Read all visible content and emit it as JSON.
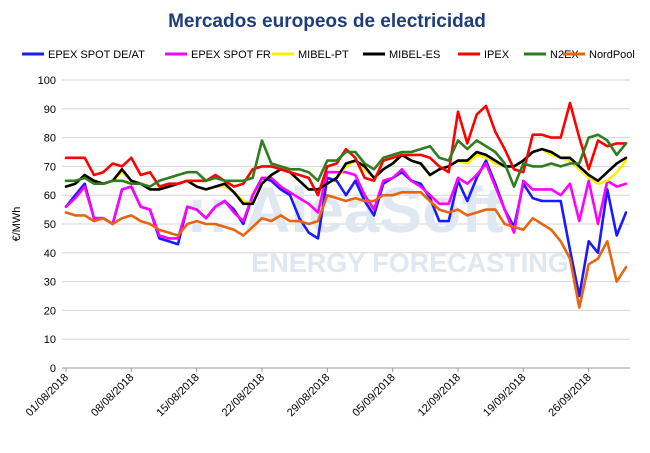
{
  "chart_data": {
    "type": "line",
    "title": "Mercados europeos de electricidad",
    "xlabel": "",
    "ylabel": "€/MWh",
    "ylim": [
      0,
      100
    ],
    "yticks": [
      0,
      10,
      20,
      30,
      40,
      50,
      60,
      70,
      80,
      90,
      100
    ],
    "grid": true,
    "legend_position": "top",
    "xtick_labels": [
      "01/08/2018",
      "08/08/2018",
      "15/08/2018",
      "22/08/2018",
      "29/08/2018",
      "05/09/2018",
      "12/09/2018",
      "19/09/2018",
      "26/09/2018"
    ],
    "x_start": "01/08/2018",
    "x_end": "30/09/2018",
    "series": [
      {
        "name": "EPEX SPOT DE/AT",
        "color": "#1a1aff",
        "values": [
          56,
          60,
          64,
          52,
          52,
          50,
          62,
          63,
          56,
          55,
          45,
          44,
          43,
          56,
          55,
          52,
          56,
          58,
          55,
          50,
          60,
          66,
          65,
          62,
          60,
          52,
          47,
          45,
          66,
          65,
          60,
          65,
          58,
          53,
          64,
          66,
          68,
          65,
          64,
          59,
          51,
          51,
          65,
          58,
          66,
          72,
          64,
          55,
          49,
          64,
          59,
          58,
          58,
          58,
          41,
          25,
          44,
          40,
          62,
          46,
          54
        ]
      },
      {
        "name": "EPEX SPOT FR",
        "color": "#ff00ff",
        "values": [
          56,
          59,
          63,
          52,
          52,
          50,
          62,
          63,
          56,
          55,
          46,
          45,
          45,
          56,
          55,
          52,
          56,
          58,
          54,
          51,
          60,
          66,
          66,
          63,
          61,
          59,
          57,
          54,
          68,
          68,
          68,
          67,
          60,
          55,
          65,
          66,
          69,
          65,
          63,
          60,
          57,
          57,
          66,
          64,
          67,
          71,
          63,
          55,
          47,
          65,
          62,
          62,
          62,
          60,
          64,
          51,
          65,
          50,
          65,
          63,
          64
        ]
      },
      {
        "name": "MIBEL-PT",
        "color": "#ffee00",
        "values": [
          63,
          64,
          67,
          65,
          64,
          65,
          68,
          65,
          64,
          62,
          62,
          63,
          64,
          65,
          63,
          62,
          63,
          63,
          61,
          58,
          57,
          64,
          67,
          69,
          68,
          65,
          62,
          62,
          64,
          66,
          70,
          72,
          69,
          66,
          69,
          71,
          74,
          72,
          71,
          67,
          69,
          70,
          72,
          71,
          74,
          73,
          71,
          70,
          70,
          72,
          75,
          76,
          74,
          73,
          72,
          69,
          66,
          64,
          65,
          68,
          72
        ]
      },
      {
        "name": "MIBEL-ES",
        "color": "#000000",
        "values": [
          63,
          64,
          67,
          65,
          64,
          65,
          69,
          65,
          64,
          62,
          62,
          63,
          64,
          65,
          63,
          62,
          63,
          64,
          61,
          57,
          57,
          64,
          67,
          69,
          68,
          65,
          62,
          62,
          64,
          66,
          71,
          72,
          70,
          66,
          69,
          71,
          74,
          72,
          71,
          67,
          69,
          70,
          72,
          72,
          75,
          74,
          72,
          70,
          70,
          72,
          75,
          76,
          75,
          73,
          73,
          70,
          67,
          65,
          68,
          71,
          73
        ]
      },
      {
        "name": "IPEX",
        "color": "#ff0000",
        "values": [
          73,
          73,
          73,
          67,
          68,
          71,
          70,
          73,
          67,
          68,
          63,
          64,
          64,
          65,
          65,
          65,
          67,
          65,
          63,
          64,
          69,
          70,
          70,
          69,
          68,
          67,
          66,
          60,
          70,
          71,
          76,
          73,
          66,
          65,
          72,
          73,
          74,
          74,
          74,
          73,
          70,
          68,
          89,
          78,
          88,
          91,
          82,
          76,
          69,
          68,
          81,
          81,
          80,
          80,
          92,
          80,
          69,
          79,
          77,
          78,
          78
        ]
      },
      {
        "name": "N2EX",
        "color": "#2e7d1e",
        "values": [
          65,
          65,
          66,
          64,
          64,
          65,
          65,
          64,
          64,
          63,
          65,
          66,
          67,
          68,
          68,
          65,
          66,
          65,
          65,
          65,
          66,
          79,
          71,
          70,
          69,
          69,
          68,
          65,
          72,
          72,
          75,
          75,
          71,
          69,
          73,
          74,
          75,
          75,
          76,
          77,
          73,
          72,
          79,
          76,
          79,
          77,
          75,
          71,
          63,
          71,
          70,
          70,
          71,
          70,
          71,
          71,
          80,
          81,
          79,
          74,
          78
        ]
      },
      {
        "name": "NordPool",
        "color": "#e8650e",
        "values": [
          54,
          53,
          53,
          51,
          52,
          50,
          52,
          53,
          51,
          50,
          48,
          47,
          46,
          50,
          51,
          50,
          50,
          49,
          48,
          46,
          49,
          52,
          51,
          53,
          51,
          51,
          50,
          51,
          60,
          59,
          58,
          59,
          58,
          58,
          60,
          60,
          61,
          61,
          61,
          58,
          55,
          54,
          55,
          53,
          54,
          55,
          55,
          50,
          49,
          48,
          52,
          50,
          48,
          44,
          38,
          21,
          36,
          38,
          44,
          30,
          35
        ]
      }
    ]
  },
  "watermark": {
    "brand": ":: AleaSoft",
    "tagline": "ENERGY FORECASTING"
  }
}
